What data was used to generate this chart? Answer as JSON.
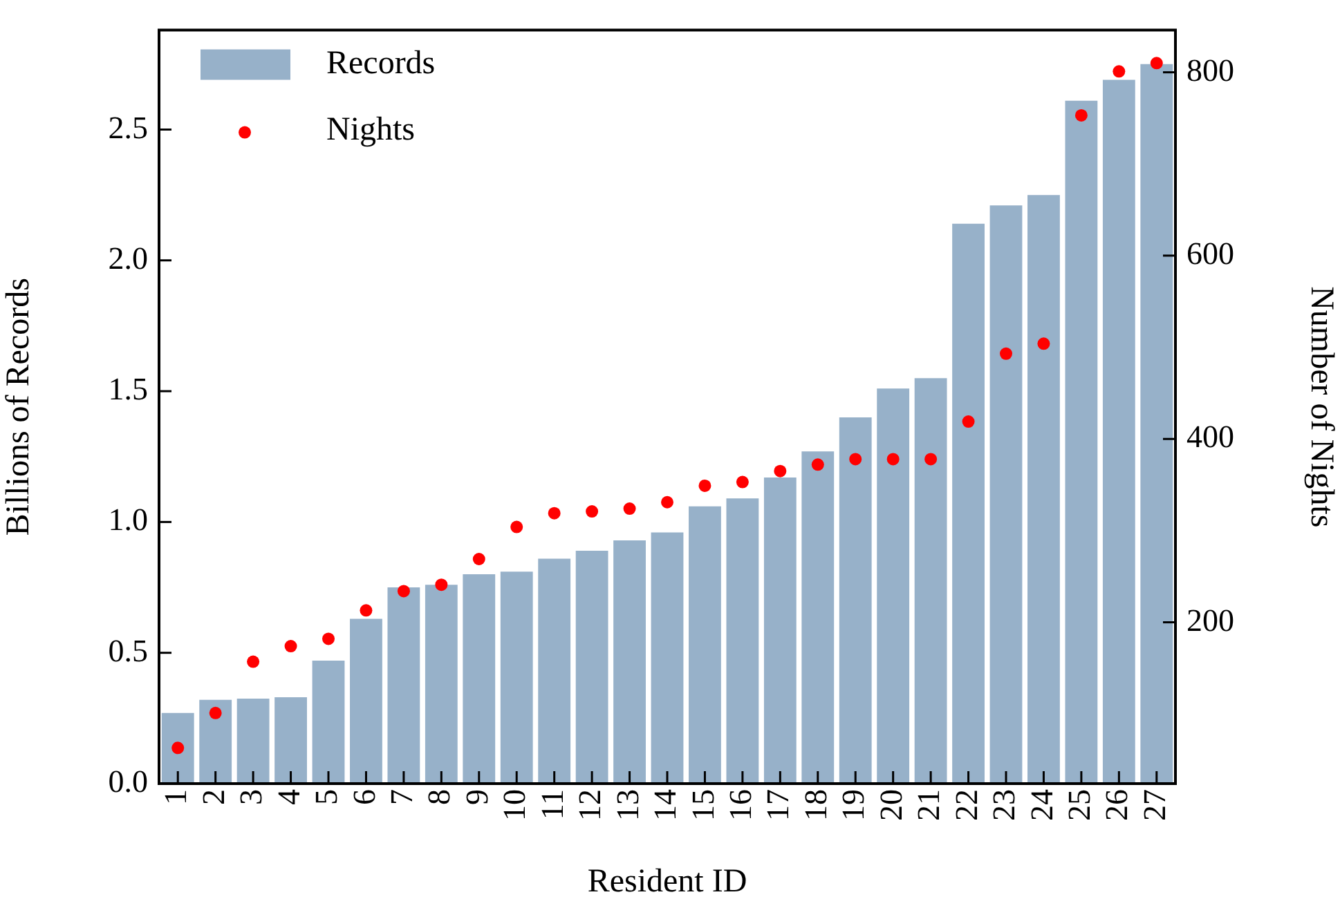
{
  "chart_data": {
    "type": "bar",
    "xlabel": "Resident ID",
    "ylabel": "Billions of Records",
    "y2label": "Number of Nights",
    "categories": [
      "1",
      "2",
      "3",
      "4",
      "5",
      "6",
      "7",
      "8",
      "9",
      "10",
      "11",
      "12",
      "13",
      "14",
      "15",
      "16",
      "17",
      "18",
      "19",
      "20",
      "21",
      "22",
      "23",
      "24",
      "25",
      "26",
      "27"
    ],
    "series": [
      {
        "name": "Records",
        "color": "#97b1c9",
        "values": [
          0.27,
          0.32,
          0.325,
          0.33,
          0.47,
          0.63,
          0.75,
          0.76,
          0.8,
          0.81,
          0.86,
          0.89,
          0.93,
          0.96,
          1.06,
          1.09,
          1.17,
          1.27,
          1.4,
          1.51,
          1.55,
          2.14,
          2.21,
          2.25,
          2.61,
          2.69,
          2.75
        ]
      },
      {
        "name": "Nights",
        "type": "scatter",
        "axis": "y2",
        "color": "#ff0000",
        "values": [
          63,
          101,
          157,
          174,
          182,
          213,
          234,
          241,
          269,
          304,
          319,
          321,
          324,
          331,
          349,
          353,
          365,
          372,
          378,
          378,
          378,
          419,
          493,
          504,
          753,
          801,
          810
        ]
      }
    ],
    "ylim": [
      0,
      2.88
    ],
    "yticks": [
      {
        "value": 0,
        "label": "0.0"
      },
      0.5,
      {
        "value": 1,
        "label": "1.0"
      },
      1.5,
      {
        "value": 2,
        "label": "2.0"
      },
      2.5
    ],
    "y2lim": [
      24,
      846
    ],
    "y2ticks": [
      200,
      400,
      600,
      800
    ],
    "legend": "top left",
    "marker": "circle",
    "grid": false
  }
}
